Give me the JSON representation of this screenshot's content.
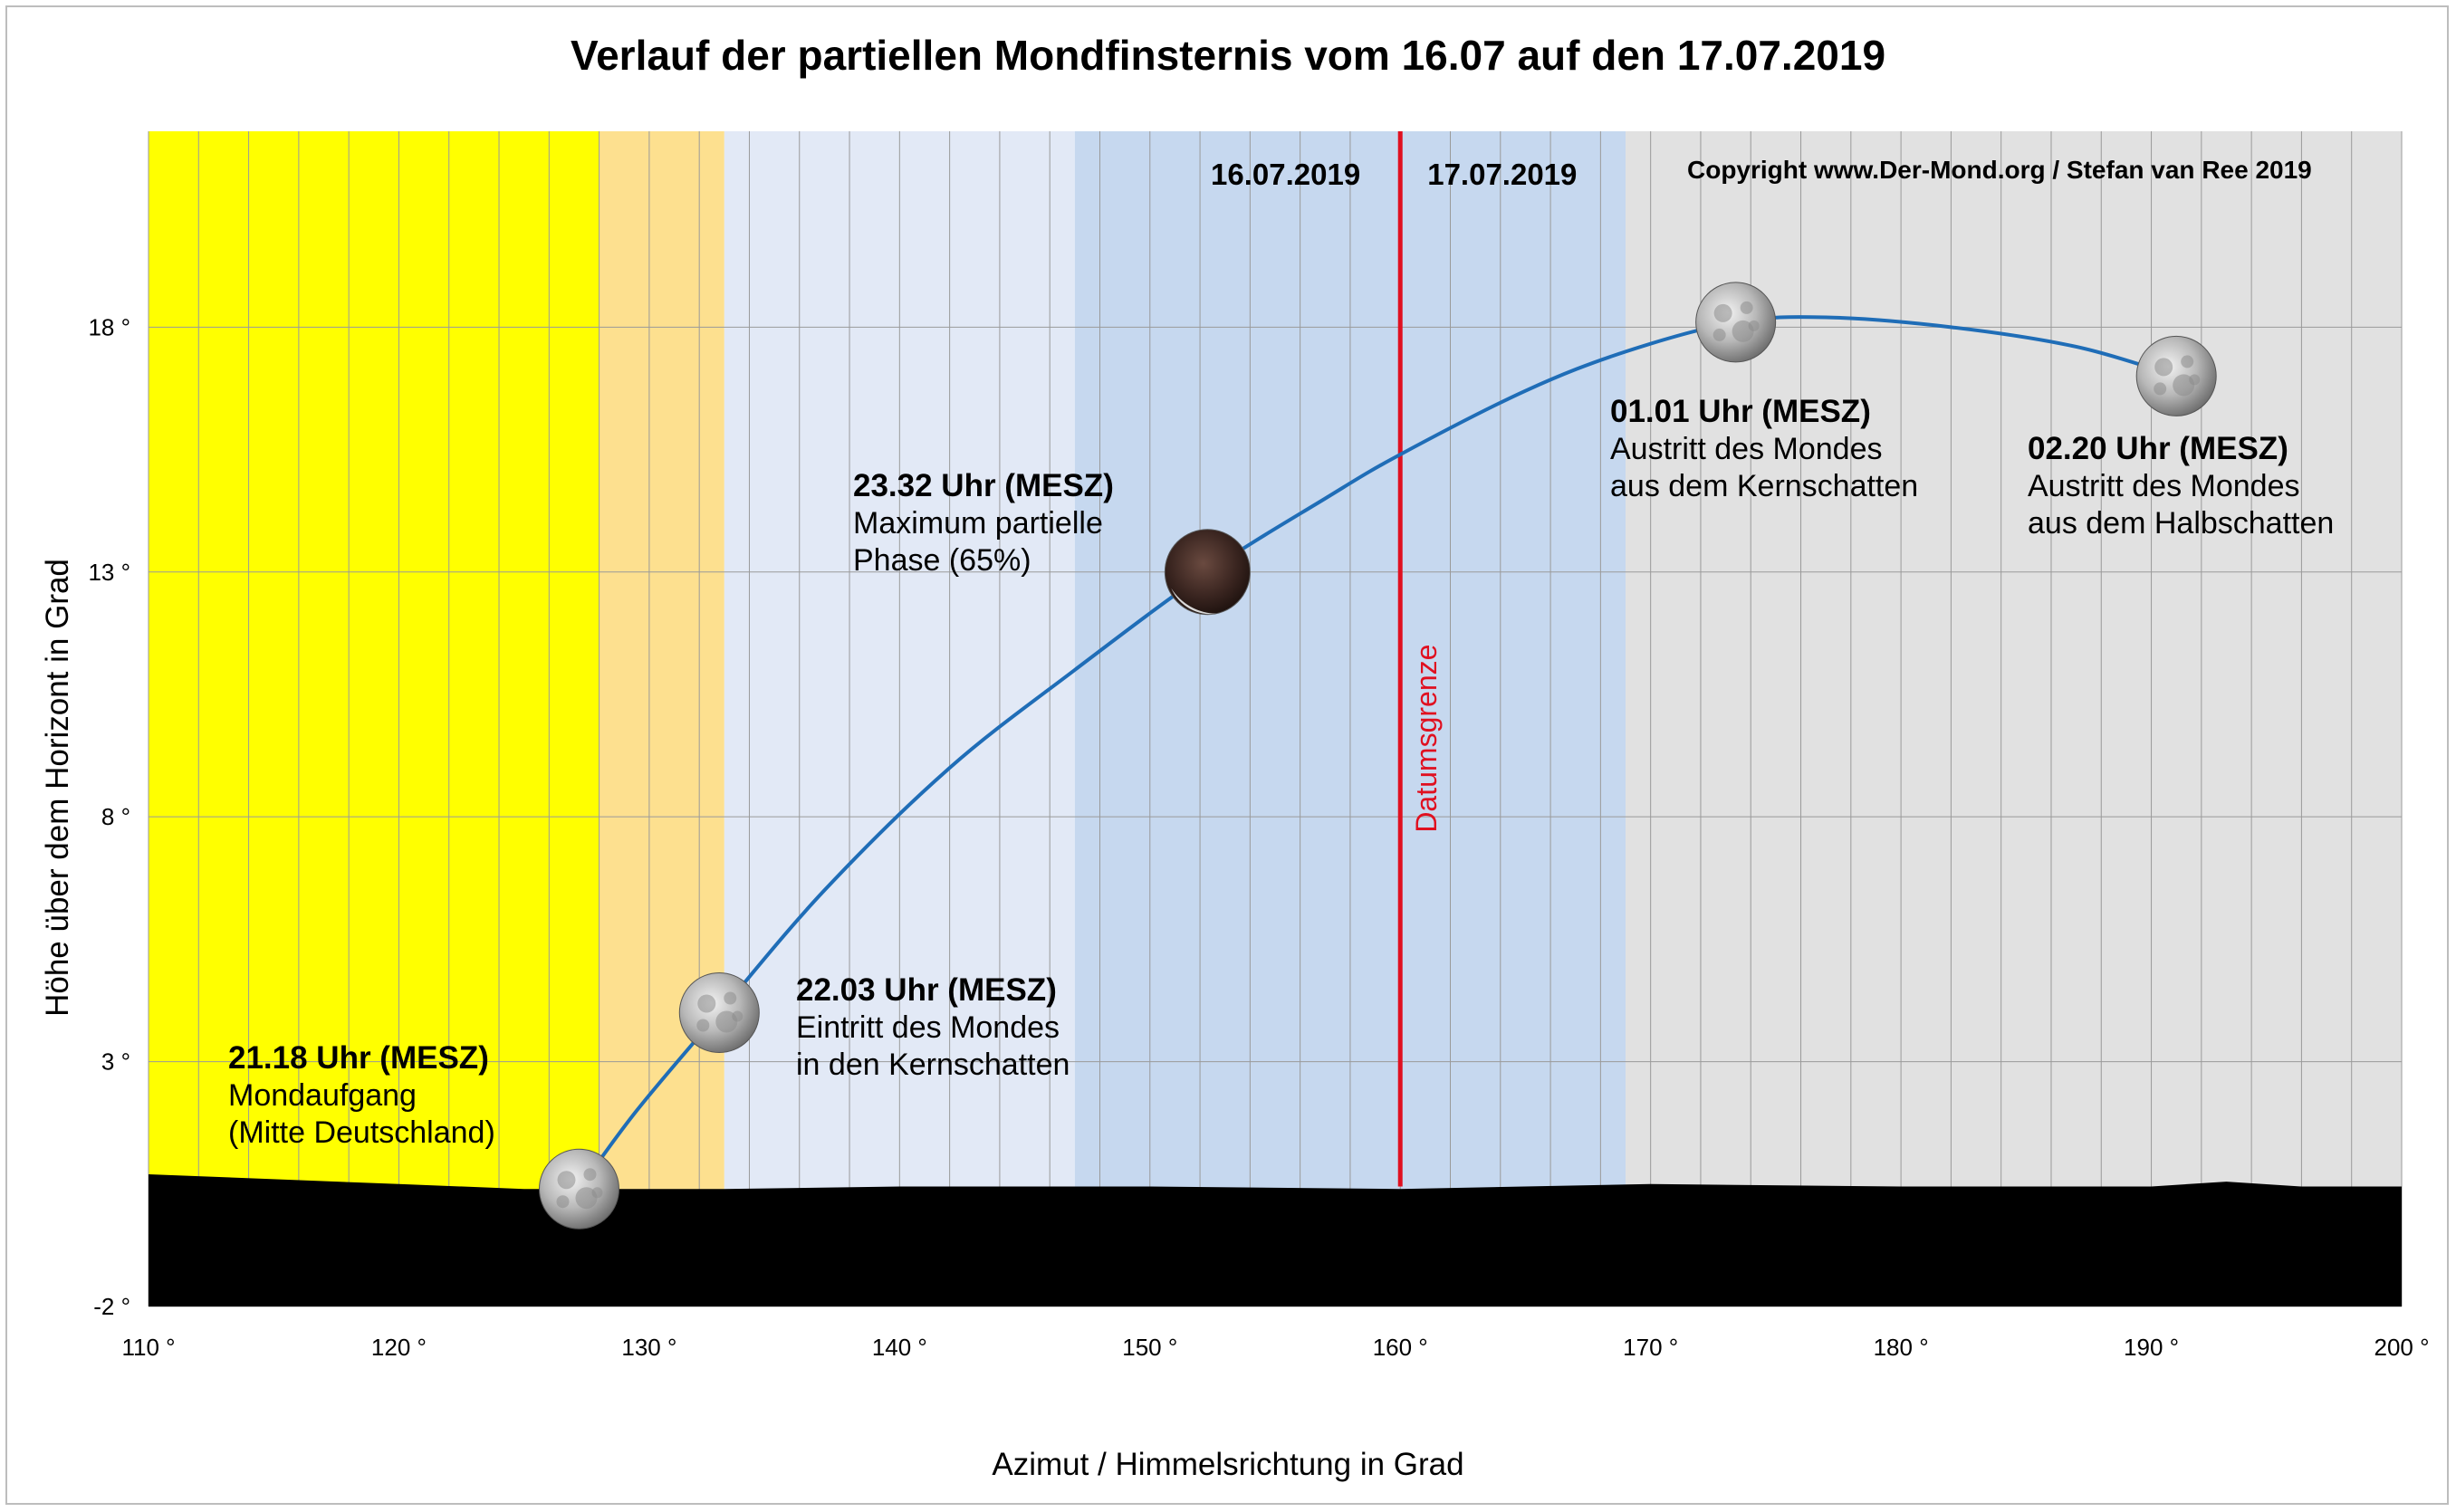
{
  "chart_data": {
    "type": "line",
    "title": "Verlauf der partiellen Mondfinsternis vom 16.07 auf den 17.07.2019",
    "xlabel": "Azimut / Himmelsrichtung in Grad",
    "ylabel": "Höhe über dem Horizont in Grad",
    "xlim": [
      110,
      200
    ],
    "ylim": [
      -2,
      22
    ],
    "grid": true,
    "x_ticks": [
      {
        "value": 110,
        "label": "110 °"
      },
      {
        "value": 120,
        "label": "120 °"
      },
      {
        "value": 130,
        "label": "130 °"
      },
      {
        "value": 140,
        "label": "140 °"
      },
      {
        "value": 150,
        "label": "150 °"
      },
      {
        "value": 160,
        "label": "160 °"
      },
      {
        "value": 170,
        "label": "170 °"
      },
      {
        "value": 180,
        "label": "180 °"
      },
      {
        "value": 190,
        "label": "190 °"
      },
      {
        "value": 200,
        "label": "200 °"
      }
    ],
    "y_ticks": [
      {
        "value": -2,
        "label": "-2 °"
      },
      {
        "value": 3,
        "label": "3 °"
      },
      {
        "value": 8,
        "label": "8 °"
      },
      {
        "value": 13,
        "label": "13 °"
      },
      {
        "value": 18,
        "label": "18 °"
      }
    ],
    "bands": [
      {
        "x0": 110,
        "x1": 128,
        "color": "#ffff00"
      },
      {
        "x0": 128,
        "x1": 133,
        "color": "#fde08f"
      },
      {
        "x0": 133,
        "x1": 147,
        "color": "#e2e9f6"
      },
      {
        "x0": 147,
        "x1": 169,
        "color": "#c6d8ef"
      },
      {
        "x0": 169,
        "x1": 200,
        "color": "#e1e1e1"
      }
    ],
    "horizon": [
      [
        110,
        0.7
      ],
      [
        115,
        0.6
      ],
      [
        120,
        0.5
      ],
      [
        125,
        0.4
      ],
      [
        128,
        0.4
      ],
      [
        133,
        0.4
      ],
      [
        140,
        0.45
      ],
      [
        150,
        0.45
      ],
      [
        160,
        0.4
      ],
      [
        170,
        0.5
      ],
      [
        180,
        0.45
      ],
      [
        190,
        0.45
      ],
      [
        193,
        0.55
      ],
      [
        196,
        0.45
      ],
      [
        200,
        0.45
      ]
    ],
    "series": [
      {
        "color": "#1f6db7",
        "points": [
          [
            127.2,
            0.4
          ],
          [
            129.5,
            2.0
          ],
          [
            132.8,
            4.0
          ],
          [
            137,
            6.5
          ],
          [
            142,
            9.0
          ],
          [
            147,
            11.0
          ],
          [
            152.3,
            13.0
          ],
          [
            157,
            14.5
          ],
          [
            160,
            15.4
          ],
          [
            165,
            16.7
          ],
          [
            169,
            17.5
          ],
          [
            173.4,
            18.1
          ],
          [
            177,
            18.2
          ],
          [
            182,
            18.0
          ],
          [
            187,
            17.6
          ],
          [
            191,
            17.0
          ]
        ]
      }
    ],
    "date_boundary": {
      "x": 160,
      "label": "Datumsgrenze",
      "color": "#e01020"
    },
    "moons": [
      {
        "x": 127.2,
        "y": 0.4,
        "eclipsed": false
      },
      {
        "x": 132.8,
        "y": 4.0,
        "eclipsed": false
      },
      {
        "x": 152.3,
        "y": 13.0,
        "eclipsed": true
      },
      {
        "x": 173.4,
        "y": 18.1,
        "eclipsed": false
      },
      {
        "x": 191.0,
        "y": 17.0,
        "eclipsed": false
      }
    ],
    "annotations": [
      {
        "time": "21.18 Uhr (MESZ)",
        "lines": [
          "Mondaufgang",
          "(Mitte Deutschland)"
        ]
      },
      {
        "time": "22.03 Uhr (MESZ)",
        "lines": [
          "Eintritt des Mondes",
          "in den Kernschatten"
        ]
      },
      {
        "time": "23.32 Uhr (MESZ)",
        "lines": [
          "Maximum partielle",
          "Phase (65%)"
        ]
      },
      {
        "time": "01.01 Uhr (MESZ)",
        "lines": [
          "Austritt des Mondes",
          "aus dem Kernschatten"
        ]
      },
      {
        "time": "02.20 Uhr (MESZ)",
        "lines": [
          "Austritt des Mondes",
          "aus dem Halbschatten"
        ]
      }
    ],
    "date_labels": [
      "16.07.2019",
      "17.07.2019"
    ],
    "copyright": "Copyright www.Der-Mond.org / Stefan van Ree 2019"
  }
}
